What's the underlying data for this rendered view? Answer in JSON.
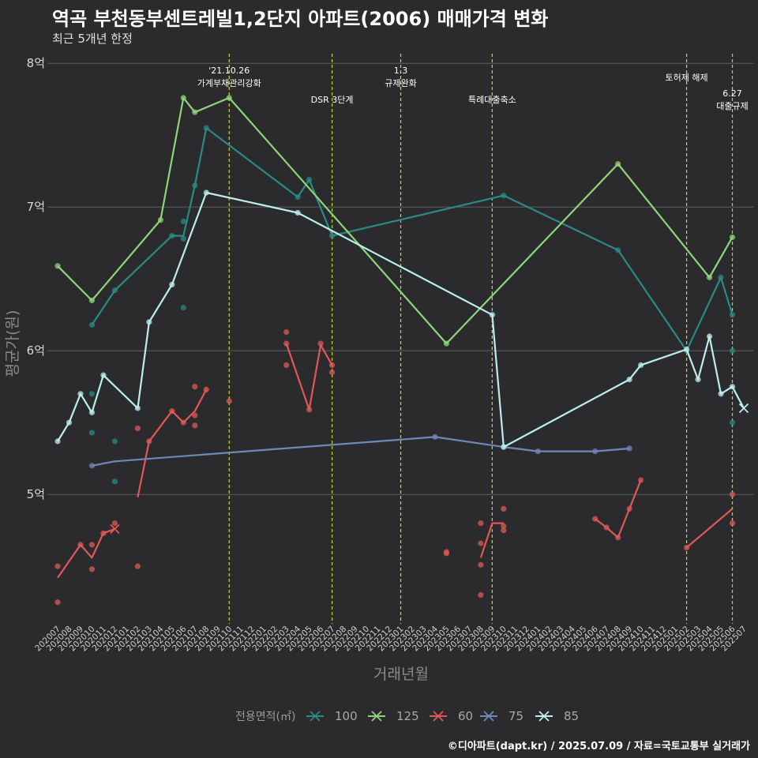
{
  "title": "역곡 부천동부센트레빌1,2단지 아파트(2006) 매매가격 변화",
  "subtitle": "최근 5개년 한정",
  "source": "©디아파트(dapt.kr) / 2025.07.09 / 자료=국토교통부 실거래가",
  "chart_data": {
    "type": "line",
    "title": "역곡 부천동부센트레빌1,2단지 아파트(2006) 매매가격 변화",
    "subtitle": "최근 5개년 한정",
    "xlabel": "거래년월",
    "ylabel": "평균가(원)",
    "ylim": [
      4.1,
      8.1
    ],
    "yticks": [
      5,
      6,
      7,
      8
    ],
    "ytick_labels": [
      "5억",
      "6억",
      "7억",
      "8억"
    ],
    "grid": true,
    "legend_position": "bottom",
    "legend_title": "전용면적(㎡)",
    "x_categories": [
      "202007",
      "202008",
      "202009",
      "202010",
      "202011",
      "202012",
      "202101",
      "202102",
      "202103",
      "202104",
      "202105",
      "202106",
      "202107",
      "202108",
      "202109",
      "202110",
      "202111",
      "202112",
      "202201",
      "202202",
      "202203",
      "202204",
      "202205",
      "202206",
      "202207",
      "202208",
      "202209",
      "202210",
      "202211",
      "202212",
      "202301",
      "202302",
      "202303",
      "202304",
      "202305",
      "202306",
      "202307",
      "202308",
      "202309",
      "202310",
      "202311",
      "202312",
      "202401",
      "202402",
      "202403",
      "202404",
      "202405",
      "202406",
      "202407",
      "202408",
      "202409",
      "202410",
      "202411",
      "202412",
      "202501",
      "202502",
      "202503",
      "202504",
      "202505",
      "202506",
      "202507"
    ],
    "annotations": [
      {
        "x": "202110",
        "lines": [
          "'21.10.26",
          "가계부채관리강화"
        ],
        "row": 0
      },
      {
        "x": "202207",
        "lines": [
          "DSR 3단계"
        ],
        "row": 2
      },
      {
        "x": "202301",
        "lines": [
          "1.3",
          "규제완화"
        ],
        "row": 0
      },
      {
        "x": "202309",
        "lines": [
          "특례대출축소"
        ],
        "row": 2
      },
      {
        "x": "202502",
        "lines": [
          "토허제 해제"
        ],
        "row": 1
      },
      {
        "x": "202506",
        "lines": [
          "6.27",
          "대출규제"
        ],
        "row": 3
      }
    ],
    "series": [
      {
        "name": "100",
        "color": "#2a8a86",
        "line": [
          [
            "202010",
            6.18
          ],
          [
            "202012",
            6.42
          ],
          [
            "202105",
            6.8
          ],
          [
            "202106",
            6.8
          ],
          [
            "202107",
            7.15
          ],
          [
            "202108",
            7.55
          ],
          [
            "202204",
            7.07
          ],
          [
            "202205",
            7.19
          ],
          [
            "202207",
            6.8
          ],
          [
            "202310",
            7.08
          ],
          [
            "202408",
            6.7
          ],
          [
            "202502",
            6.0
          ],
          [
            "202505",
            6.51
          ],
          [
            "202506",
            6.25
          ]
        ],
        "points": [
          [
            "202010",
            6.18
          ],
          [
            "202010",
            5.7
          ],
          [
            "202010",
            5.43
          ],
          [
            "202012",
            6.42
          ],
          [
            "202012",
            5.37
          ],
          [
            "202012",
            5.09
          ],
          [
            "202105",
            6.8
          ],
          [
            "202106",
            6.9
          ],
          [
            "202106",
            6.78
          ],
          [
            "202106",
            6.3
          ],
          [
            "202107",
            7.15
          ],
          [
            "202108",
            7.55
          ],
          [
            "202204",
            7.07
          ],
          [
            "202205",
            7.19
          ],
          [
            "202207",
            6.8
          ],
          [
            "202310",
            7.08
          ],
          [
            "202408",
            6.7
          ],
          [
            "202502",
            6.0
          ],
          [
            "202505",
            6.51
          ],
          [
            "202506",
            6.25
          ],
          [
            "202506",
            6.0
          ],
          [
            "202506",
            5.5
          ]
        ],
        "crosses": []
      },
      {
        "name": "125",
        "color": "#8fd47a",
        "line": [
          [
            "202007",
            6.59
          ],
          [
            "202010",
            6.35
          ],
          [
            "202104",
            6.91
          ],
          [
            "202106",
            7.76
          ],
          [
            "202107",
            7.66
          ],
          [
            "202110",
            7.76
          ],
          [
            "202305",
            6.05
          ],
          [
            "202408",
            7.3
          ],
          [
            "202504",
            6.51
          ],
          [
            "202506",
            6.79
          ]
        ],
        "points": [
          [
            "202007",
            6.59
          ],
          [
            "202010",
            6.35
          ],
          [
            "202104",
            6.91
          ],
          [
            "202106",
            7.76
          ],
          [
            "202107",
            7.66
          ],
          [
            "202110",
            7.76
          ],
          [
            "202305",
            6.05
          ],
          [
            "202408",
            7.3
          ],
          [
            "202504",
            6.51
          ],
          [
            "202506",
            6.79
          ]
        ],
        "crosses": []
      },
      {
        "name": "60",
        "color": "#e05858",
        "segments": [
          [
            [
              "202007",
              4.42
            ],
            [
              "202009",
              4.65
            ],
            [
              "202010",
              4.56
            ],
            [
              "202011",
              4.73
            ],
            [
              "202012",
              4.76
            ]
          ],
          [
            [
              "202102",
              4.98
            ],
            [
              "202103",
              5.37
            ],
            [
              "202105",
              5.58
            ],
            [
              "202106",
              5.5
            ],
            [
              "202107",
              5.58
            ],
            [
              "202108",
              5.73
            ]
          ],
          [
            [
              "202203",
              6.05
            ],
            [
              "202205",
              5.59
            ],
            [
              "202206",
              6.04
            ],
            [
              "202207",
              5.9
            ]
          ],
          [
            [
              "202308",
              4.56
            ],
            [
              "202309",
              4.8
            ],
            [
              "202310",
              4.8
            ]
          ],
          [
            [
              "202406",
              4.83
            ],
            [
              "202407",
              4.77
            ],
            [
              "202408",
              4.7
            ],
            [
              "202409",
              4.9
            ],
            [
              "202410",
              5.1
            ]
          ],
          [
            [
              "202502",
              4.63
            ],
            [
              "202506",
              4.9
            ]
          ]
        ],
        "points": [
          [
            "202007",
            4.5
          ],
          [
            "202007",
            4.25
          ],
          [
            "202009",
            4.65
          ],
          [
            "202010",
            4.65
          ],
          [
            "202010",
            4.48
          ],
          [
            "202011",
            4.73
          ],
          [
            "202012",
            4.8
          ],
          [
            "202102",
            5.46
          ],
          [
            "202102",
            4.5
          ],
          [
            "202103",
            5.37
          ],
          [
            "202105",
            5.58
          ],
          [
            "202106",
            5.5
          ],
          [
            "202107",
            5.75
          ],
          [
            "202107",
            5.55
          ],
          [
            "202107",
            5.48
          ],
          [
            "202108",
            5.73
          ],
          [
            "202110",
            5.65
          ],
          [
            "202203",
            6.13
          ],
          [
            "202203",
            6.05
          ],
          [
            "202203",
            5.9
          ],
          [
            "202205",
            5.59
          ],
          [
            "202206",
            6.05
          ],
          [
            "202207",
            5.9
          ],
          [
            "202207",
            5.85
          ],
          [
            "202305",
            4.6
          ],
          [
            "202305",
            4.59
          ],
          [
            "202308",
            4.8
          ],
          [
            "202308",
            4.66
          ],
          [
            "202308",
            4.51
          ],
          [
            "202308",
            4.3
          ],
          [
            "202310",
            4.9
          ],
          [
            "202310",
            4.78
          ],
          [
            "202310",
            4.75
          ],
          [
            "202406",
            4.83
          ],
          [
            "202407",
            4.77
          ],
          [
            "202408",
            4.7
          ],
          [
            "202409",
            4.9
          ],
          [
            "202410",
            5.1
          ],
          [
            "202502",
            4.63
          ],
          [
            "202506",
            5.0
          ],
          [
            "202506",
            4.8
          ]
        ],
        "crosses": [
          [
            "202012",
            4.76
          ]
        ]
      },
      {
        "name": "75",
        "color": "#7088b8",
        "line": [
          [
            "202010",
            5.2
          ],
          [
            "202012",
            5.23
          ],
          [
            "202304",
            5.4
          ],
          [
            "202310",
            5.33
          ],
          [
            "202401",
            5.3
          ],
          [
            "202406",
            5.3
          ],
          [
            "202409",
            5.32
          ]
        ],
        "points": [
          [
            "202010",
            5.2
          ],
          [
            "202304",
            5.4
          ],
          [
            "202310",
            5.33
          ],
          [
            "202401",
            5.3
          ],
          [
            "202406",
            5.3
          ],
          [
            "202409",
            5.32
          ]
        ],
        "crosses": []
      },
      {
        "name": "85",
        "color": "#bdeeee",
        "line": [
          [
            "202007",
            5.37
          ],
          [
            "202008",
            5.5
          ],
          [
            "202009",
            5.7
          ],
          [
            "202010",
            5.57
          ],
          [
            "202011",
            5.83
          ],
          [
            "202102",
            5.6
          ],
          [
            "202103",
            6.2
          ],
          [
            "202105",
            6.46
          ],
          [
            "202108",
            7.1
          ],
          [
            "202204",
            6.96
          ],
          [
            "202309",
            6.25
          ],
          [
            "202310",
            5.33
          ],
          [
            "202409",
            5.8
          ],
          [
            "202410",
            5.9
          ],
          [
            "202502",
            6.01
          ],
          [
            "202503",
            5.8
          ],
          [
            "202504",
            6.1
          ],
          [
            "202505",
            5.7
          ],
          [
            "202506",
            5.75
          ],
          [
            "202507",
            5.6
          ]
        ],
        "points": [
          [
            "202007",
            5.37
          ],
          [
            "202008",
            5.5
          ],
          [
            "202009",
            5.7
          ],
          [
            "202010",
            5.57
          ],
          [
            "202011",
            5.83
          ],
          [
            "202102",
            5.6
          ],
          [
            "202103",
            6.2
          ],
          [
            "202105",
            6.46
          ],
          [
            "202108",
            7.1
          ],
          [
            "202204",
            6.96
          ],
          [
            "202309",
            6.25
          ],
          [
            "202310",
            5.33
          ],
          [
            "202409",
            5.8
          ],
          [
            "202410",
            5.9
          ],
          [
            "202502",
            6.01
          ],
          [
            "202503",
            5.8
          ],
          [
            "202504",
            6.1
          ],
          [
            "202505",
            5.7
          ],
          [
            "202506",
            5.75
          ]
        ],
        "crosses": [
          [
            "202507",
            5.6
          ]
        ]
      }
    ]
  }
}
